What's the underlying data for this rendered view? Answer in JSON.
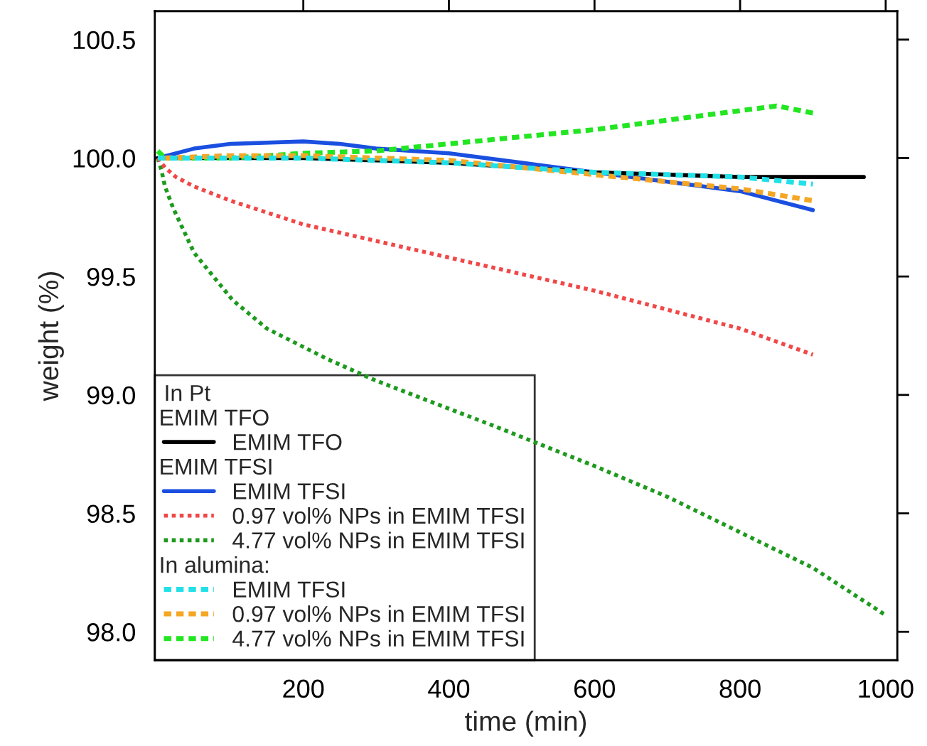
{
  "chart_data": {
    "type": "line",
    "xlabel": "time (min)",
    "ylabel": "weight (%)",
    "xlim": [
      -4,
      1016
    ],
    "xticks": [
      200,
      400,
      600,
      800,
      1000
    ],
    "ylim": [
      97.88,
      100.62
    ],
    "yticks": [
      {
        "value": 98,
        "label": "98.0"
      },
      98.5,
      {
        "value": 99,
        "label": "99.0"
      },
      99.5,
      {
        "value": 100,
        "label": "100.0"
      },
      100.5
    ],
    "legend": "bottom left",
    "legend_title": "In Pt",
    "grid": false,
    "annotations": [
      "EMIM TFO",
      "EMIM TFSI",
      "In alumina:"
    ],
    "series": [
      {
        "name": "EMIM TFO",
        "color": "#000000",
        "line_style": "solid",
        "x": [
          0,
          100,
          200,
          300,
          400,
          500,
          600,
          700,
          800,
          900,
          970
        ],
        "values": [
          100.0,
          100.0,
          100.0,
          99.99,
          99.98,
          99.96,
          99.94,
          99.93,
          99.92,
          99.92,
          99.92
        ]
      },
      {
        "name": "EMIM TFSI",
        "color": "#1a4fe0",
        "line_style": "solid",
        "x": [
          0,
          50,
          100,
          200,
          250,
          300,
          400,
          500,
          600,
          700,
          800,
          900
        ],
        "values": [
          100.0,
          100.04,
          100.06,
          100.07,
          100.06,
          100.04,
          100.02,
          99.98,
          99.94,
          99.9,
          99.86,
          99.78
        ]
      },
      {
        "name": "0.97 vol% NPs in EMIM TFSI",
        "color": "#f04848",
        "line_style": "dotted",
        "x": [
          0,
          10,
          25,
          50,
          100,
          200,
          300,
          400,
          500,
          600,
          700,
          800,
          900
        ],
        "values": [
          100.0,
          99.96,
          99.92,
          99.88,
          99.82,
          99.72,
          99.65,
          99.58,
          99.51,
          99.44,
          99.36,
          99.28,
          99.17
        ]
      },
      {
        "name": "4.77 vol% NPs in EMIM TFSI",
        "color": "#1e9a1e",
        "line_style": "dotted",
        "x": [
          0,
          5,
          10,
          21,
          50,
          103,
          150,
          234,
          300,
          461,
          600,
          700,
          800,
          900,
          1000
        ],
        "values": [
          100.0,
          99.95,
          99.88,
          99.79,
          99.6,
          99.4,
          99.28,
          99.15,
          99.06,
          98.87,
          98.7,
          98.57,
          98.42,
          98.27,
          98.07
        ]
      },
      {
        "name": "EMIM TFSI",
        "color": "#22e0e8",
        "line_style": "dashed",
        "x": [
          0,
          100,
          200,
          300,
          400,
          500,
          600,
          700,
          800,
          900
        ],
        "values": [
          100.0,
          100.0,
          100.0,
          99.99,
          99.98,
          99.96,
          99.94,
          99.93,
          99.92,
          99.89
        ]
      },
      {
        "name": "0.97 vol% NPs in EMIM TFSI",
        "color": "#f5a623",
        "line_style": "dashed",
        "x": [
          10,
          100,
          200,
          300,
          400,
          500,
          600,
          700,
          800,
          900
        ],
        "values": [
          100.0,
          100.01,
          100.01,
          100.0,
          99.99,
          99.96,
          99.93,
          99.9,
          99.87,
          99.82
        ]
      },
      {
        "name": "4.77 vol% NPs in EMIM TFSI",
        "color": "#22e622",
        "line_style": "dashed",
        "x": [
          0,
          10,
          100,
          200,
          300,
          400,
          500,
          600,
          700,
          800,
          850,
          900
        ],
        "values": [
          100.03,
          100.0,
          100.0,
          100.02,
          100.03,
          100.06,
          100.09,
          100.12,
          100.16,
          100.2,
          100.22,
          100.19
        ]
      }
    ]
  }
}
